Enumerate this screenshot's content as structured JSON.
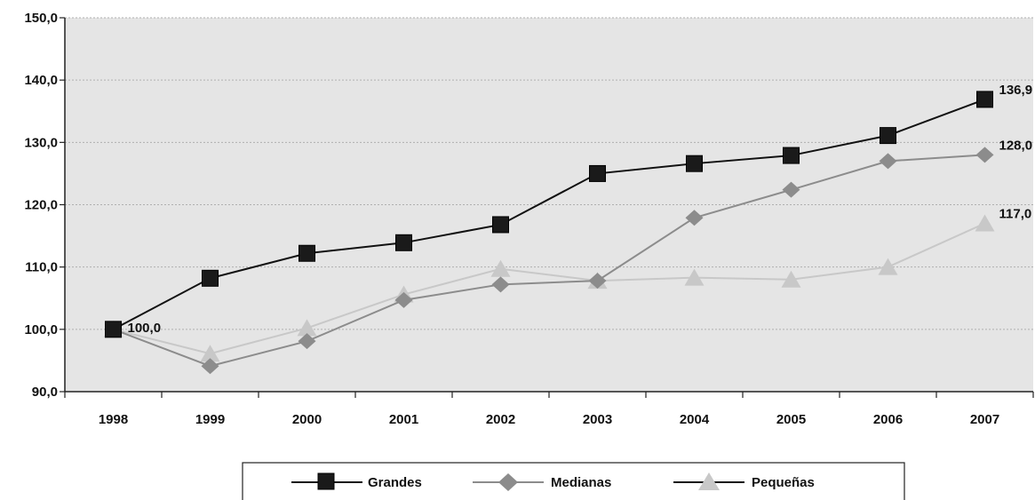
{
  "chart_data": {
    "type": "line",
    "title": "",
    "xlabel": "",
    "ylabel": "",
    "categories": [
      "1998",
      "1999",
      "2000",
      "2001",
      "2002",
      "2003",
      "2004",
      "2005",
      "2006",
      "2007"
    ],
    "ylim": [
      90,
      150
    ],
    "yticks": [
      90,
      100,
      110,
      120,
      130,
      140,
      150
    ],
    "ytick_labels": [
      "90,0",
      "100,0",
      "110,0",
      "120,0",
      "130,0",
      "140,0",
      "150,0"
    ],
    "grid": true,
    "legend_position": "bottom",
    "series": [
      {
        "name": "Grandes",
        "marker": "square",
        "line_color": "#111111",
        "marker_color": "#1a1a1a",
        "values": [
          100.0,
          108.2,
          112.2,
          113.9,
          116.8,
          125.0,
          126.6,
          127.9,
          131.1,
          136.9
        ]
      },
      {
        "name": "Medianas",
        "marker": "diamond",
        "line_color": "#8c8c8c",
        "marker_color": "#8c8c8c",
        "values": [
          100.0,
          94.1,
          98.1,
          104.7,
          107.2,
          107.8,
          117.9,
          122.4,
          127.0,
          128.0
        ]
      },
      {
        "name": "Pequeñas",
        "marker": "triangle",
        "line_color": "#c8c8c8",
        "marker_color": "#c8c8c8",
        "values": [
          100.0,
          96.1,
          100.2,
          105.6,
          109.7,
          107.8,
          108.3,
          108.0,
          110.0,
          117.0
        ]
      }
    ],
    "annotations": [
      {
        "text": "100,0",
        "x": "1998",
        "y": 100.0
      },
      {
        "text": "136,9",
        "x": "2007",
        "y": 136.9
      },
      {
        "text": "128,0",
        "x": "2007",
        "y": 128.0
      },
      {
        "text": "117,0",
        "x": "2007",
        "y": 117.0
      }
    ]
  },
  "colors": {
    "plot_background": "#e5e5e5",
    "gridline": "#b0b0b0",
    "axis": "#222222"
  }
}
